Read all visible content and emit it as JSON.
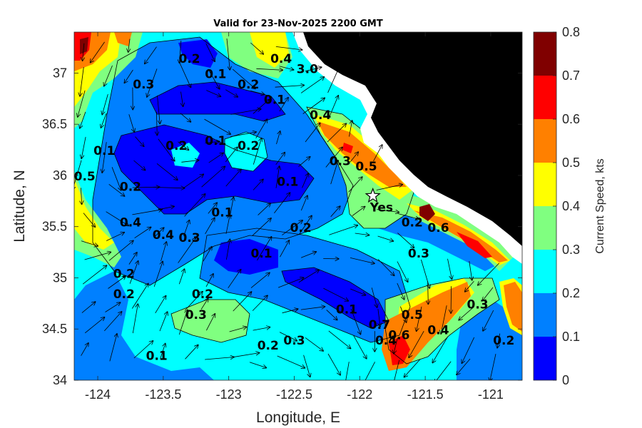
{
  "title": "Valid for 23-Nov-2025 2200 GMT",
  "xlabel": "Longitude, E",
  "ylabel": "Latitude, N",
  "x_ticks": [
    "-124",
    "-123.5",
    "-123",
    "-122.5",
    "-122",
    "-121.5",
    "-121"
  ],
  "y_ticks": [
    "34",
    "34.5",
    "35",
    "35.5",
    "36",
    "36.5",
    "37"
  ],
  "colorbar": {
    "label": "Current Speed, kts",
    "ticks": [
      "0",
      "0.1",
      "0.2",
      "0.3",
      "0.4",
      "0.5",
      "0.6",
      "0.7",
      "0.8"
    ],
    "colors": [
      "#0000ff",
      "#0080ff",
      "#00ffff",
      "#80ff80",
      "#ffff00",
      "#ff8000",
      "#ff0000",
      "#800000"
    ]
  },
  "station": {
    "label": "Yes",
    "lon": -121.9,
    "lat": 35.8
  },
  "contour_labels": [
    {
      "text": "0.2",
      "lon": -123.3,
      "lat": 37.1
    },
    {
      "text": "0.1",
      "lon": -123.1,
      "lat": 36.95
    },
    {
      "text": "0.3",
      "lon": -123.65,
      "lat": 36.85
    },
    {
      "text": "0.4",
      "lon": -122.6,
      "lat": 37.1
    },
    {
      "text": "3.0",
      "lon": -122.4,
      "lat": 37.0
    },
    {
      "text": "0.2",
      "lon": -122.85,
      "lat": 36.85
    },
    {
      "text": "0.1",
      "lon": -122.65,
      "lat": 36.7
    },
    {
      "text": "0.4",
      "lon": -122.3,
      "lat": 36.55
    },
    {
      "text": "0.1",
      "lon": -123.95,
      "lat": 36.2
    },
    {
      "text": "0.2",
      "lon": -123.4,
      "lat": 36.25
    },
    {
      "text": "0.1",
      "lon": -123.1,
      "lat": 36.3
    },
    {
      "text": "0.2",
      "lon": -122.85,
      "lat": 36.25
    },
    {
      "text": "0.3",
      "lon": -122.15,
      "lat": 36.1
    },
    {
      "text": "0.5",
      "lon": -121.95,
      "lat": 36.05
    },
    {
      "text": "0.5",
      "lon": -124.1,
      "lat": 35.95
    },
    {
      "text": "0.2",
      "lon": -123.75,
      "lat": 35.85
    },
    {
      "text": "0.1",
      "lon": -122.55,
      "lat": 35.9
    },
    {
      "text": "0.4",
      "lon": -123.75,
      "lat": 35.5
    },
    {
      "text": "0.4",
      "lon": -123.5,
      "lat": 35.38
    },
    {
      "text": "0.3",
      "lon": -123.3,
      "lat": 35.35
    },
    {
      "text": "0.1",
      "lon": -123.05,
      "lat": 35.6
    },
    {
      "text": "0.2",
      "lon": -122.45,
      "lat": 35.45
    },
    {
      "text": "0.1",
      "lon": -122.75,
      "lat": 35.2
    },
    {
      "text": "0.2",
      "lon": -123.8,
      "lat": 35.0
    },
    {
      "text": "0.2",
      "lon": -123.8,
      "lat": 34.8
    },
    {
      "text": "0.2",
      "lon": -123.2,
      "lat": 34.8
    },
    {
      "text": "0.3",
      "lon": -123.25,
      "lat": 34.6
    },
    {
      "text": "0.1",
      "lon": -122.1,
      "lat": 34.65
    },
    {
      "text": "0.7",
      "lon": -121.85,
      "lat": 34.5
    },
    {
      "text": "0.5",
      "lon": -121.6,
      "lat": 34.6
    },
    {
      "text": "0.4",
      "lon": -121.8,
      "lat": 34.35
    },
    {
      "text": "0.6",
      "lon": -121.7,
      "lat": 34.4
    },
    {
      "text": "0.4",
      "lon": -121.4,
      "lat": 34.45
    },
    {
      "text": "0.3",
      "lon": -121.55,
      "lat": 35.2
    },
    {
      "text": "0.3",
      "lon": -121.1,
      "lat": 34.7
    },
    {
      "text": "0.2",
      "lon": -120.9,
      "lat": 34.35
    },
    {
      "text": "0.3",
      "lon": -122.5,
      "lat": 34.35
    },
    {
      "text": "0.2",
      "lon": -122.7,
      "lat": 34.3
    },
    {
      "text": "0.1",
      "lon": -123.55,
      "lat": 34.2
    },
    {
      "text": "0.2",
      "lon": -121.6,
      "lat": 35.5
    },
    {
      "text": "0.6",
      "lon": -121.4,
      "lat": 35.45
    }
  ]
}
